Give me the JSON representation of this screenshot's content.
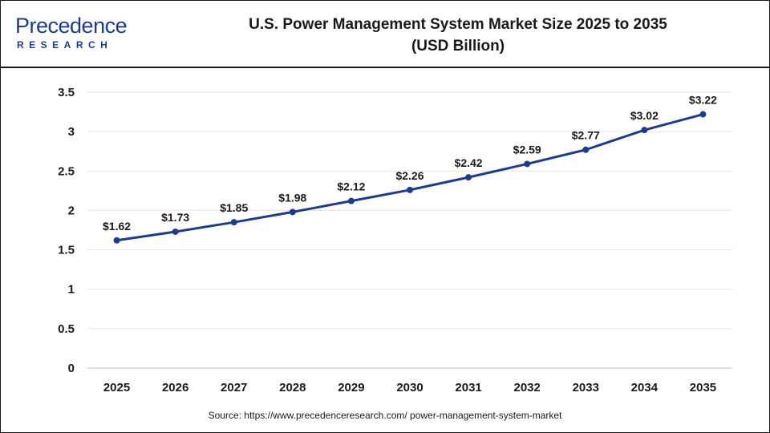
{
  "brand": {
    "name": "Precedence",
    "sub": "RESEARCH",
    "color": "#1f3c8c"
  },
  "header": {
    "title_line1": "U.S. Power Management System Market Size 2025 to 2035",
    "title_line2": "(USD Billion)"
  },
  "source": "Source: https://www.precedenceresearch.com/ power-management-system-market",
  "chart_data": {
    "type": "line",
    "categories": [
      "2025",
      "2026",
      "2027",
      "2028",
      "2029",
      "2030",
      "2031",
      "2032",
      "2033",
      "2034",
      "2035"
    ],
    "values": [
      1.62,
      1.73,
      1.85,
      1.98,
      2.12,
      2.26,
      2.42,
      2.59,
      2.77,
      3.02,
      3.22
    ],
    "data_labels": [
      "$1.62",
      "$1.73",
      "$1.85",
      "$1.98",
      "$2.12",
      "$2.26",
      "$2.42",
      "$2.59",
      "$2.77",
      "$3.02",
      "$3.22"
    ],
    "y_ticks": [
      "0",
      "0.5",
      "1",
      "1.5",
      "2",
      "2.5",
      "3",
      "3.5"
    ],
    "ylim": [
      0,
      3.5
    ],
    "grid": true,
    "line_color": "#1f3c8c",
    "legend": "none"
  }
}
